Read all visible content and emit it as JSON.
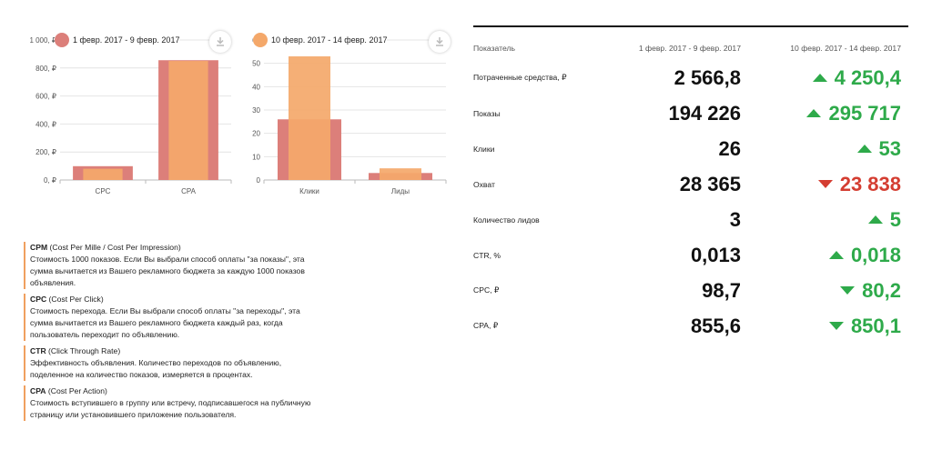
{
  "colors": {
    "series1": "#dc7f7a",
    "series2": "#f4a86a",
    "up": "#2eaa4a",
    "down": "#d43d31"
  },
  "chart_data": [
    {
      "type": "bar",
      "categories": [
        "CPC",
        "CPA"
      ],
      "series": [
        {
          "name": "1 февр. 2017 - 9 февр. 2017",
          "values": [
            98.7,
            855.6
          ]
        },
        {
          "name": "10 февр. 2017 - 14 февр. 2017",
          "values": [
            80.2,
            850.1
          ]
        }
      ],
      "ylim": [
        0,
        1000
      ],
      "yticks": [
        "0, ₽",
        "200, ₽",
        "400, ₽",
        "600, ₽",
        "800, ₽",
        "1 000, ₽"
      ],
      "grid": true,
      "legend": "top-left",
      "overlap": true
    },
    {
      "type": "bar",
      "categories": [
        "Клики",
        "Лиды"
      ],
      "series": [
        {
          "name": "1 февр. 2017 - 9 февр. 2017",
          "values": [
            26,
            3
          ]
        },
        {
          "name": "10 февр. 2017 - 14 февр. 2017",
          "values": [
            53,
            5
          ]
        }
      ],
      "ylim": [
        0,
        60
      ],
      "yticks": [
        "0",
        "10",
        "20",
        "30",
        "40",
        "50",
        "60"
      ],
      "grid": true,
      "legend": "top-left",
      "overlap": true
    }
  ],
  "legend": {
    "left": "1 февр. 2017 - 9 февр. 2017",
    "right": "10 февр. 2017 - 14 февр. 2017"
  },
  "icons": {
    "download": "download-icon"
  },
  "glossary": [
    {
      "term": "CPM",
      "full": " (Cost Per Mille / Cost Per Impression)",
      "text": "Стоимость 1000 показов. Если Вы выбрали способ оплаты \"за показы\", эта сумма вычитается из Вашего рекламного бюджета за каждую 1000 показов объявления."
    },
    {
      "term": "CPC",
      "full": " (Cost Per Click)",
      "text": "Стоимость перехода. Если Вы выбрали способ оплаты \"за переходы\", эта сумма вычитается из Вашего рекламного бюджета каждый раз, когда пользователь переходит по объявлению."
    },
    {
      "term": "CTR",
      "full": " (Click Through Rate)",
      "text": "Эффективность объявления. Количество переходов по объявлению, поделенное на количество показов, измеряется в процентах."
    },
    {
      "term": "CPA",
      "full": " (Cost Per Action)",
      "text": "Стоимость вступившего в группу или встречу, подписавшегося на публичную страницу или установившего приложение пользователя."
    }
  ],
  "table": {
    "headers": [
      "Показатель",
      "1 февр. 2017 - 9 февр. 2017",
      "10 февр. 2017 - 14 февр. 2017"
    ],
    "rows": [
      {
        "label": "Потраченные средства, ₽",
        "v1": "2 566,8",
        "v2": "4 250,4",
        "trend": "up"
      },
      {
        "label": "Показы",
        "v1": "194 226",
        "v2": "295 717",
        "trend": "up"
      },
      {
        "label": "Клики",
        "v1": "26",
        "v2": "53",
        "trend": "up"
      },
      {
        "label": "Охват",
        "v1": "28 365",
        "v2": "23 838",
        "trend": "down-red"
      },
      {
        "label": "Количество лидов",
        "v1": "3",
        "v2": "5",
        "trend": "up"
      },
      {
        "label": "CTR, %",
        "v1": "0,013",
        "v2": "0,018",
        "trend": "up"
      },
      {
        "label": "CPC, ₽",
        "v1": "98,7",
        "v2": "80,2",
        "trend": "down-green"
      },
      {
        "label": "CPA, ₽",
        "v1": "855,6",
        "v2": "850,1",
        "trend": "down-green"
      }
    ]
  }
}
